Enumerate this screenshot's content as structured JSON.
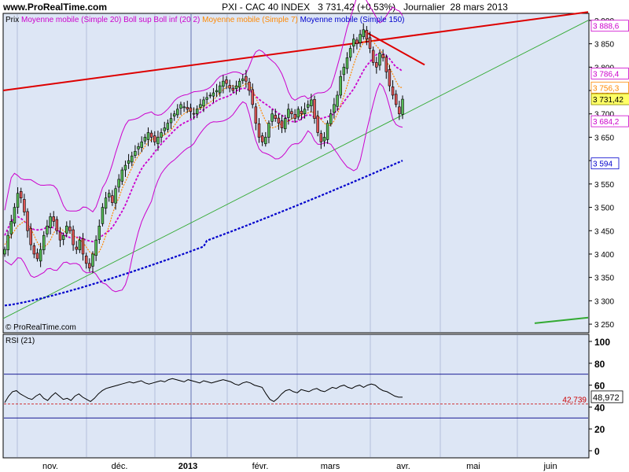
{
  "header": {
    "site": "www.ProRealTime.com",
    "title": "PXI - CAC 40 INDEX   3 731,42 (+0,53%)   Journalier  28 mars 2013"
  },
  "watermark": "© ProRealTime.com",
  "legend": [
    {
      "label": "Prix",
      "color": "#000000"
    },
    {
      "label": "Moyenne mobile (Simple 20)",
      "color": "#cc00cc"
    },
    {
      "label": "Boll sup Boll inf (20 2)",
      "color": "#cc00cc"
    },
    {
      "label": "Moyenne mobile (Simple 7)",
      "color": "#ff8800"
    },
    {
      "label": "Moyenne mobile (Simple 150)",
      "color": "#0000cc"
    }
  ],
  "rsi": {
    "label": "RSI (21)",
    "current": "48,972",
    "marker": "42,739",
    "ticks": [
      "100",
      "80",
      "60",
      "40",
      "20",
      "0"
    ]
  },
  "price_axis_ticks": [
    "3 900",
    "3 850",
    "3 800",
    "3 750",
    "3 700",
    "3 650",
    "3 600",
    "3 550",
    "3 500",
    "3 450",
    "3 400",
    "3 350",
    "3 300",
    "3 250"
  ],
  "value_tags": [
    {
      "text": "3 888,6",
      "color": "#cc00cc",
      "border": "#cc00cc",
      "bg": "#ffffff"
    },
    {
      "text": "3 786,4",
      "color": "#cc00cc",
      "border": "#cc00cc",
      "bg": "#ffffff"
    },
    {
      "text": "3 756,3",
      "color": "#ff8800",
      "border": "#ff8800",
      "bg": "#ffffff"
    },
    {
      "text": "3 731,42",
      "color": "#000000",
      "border": "#888800",
      "bg": "#ffff66"
    },
    {
      "text": "3 684,2",
      "color": "#cc00cc",
      "border": "#cc00cc",
      "bg": "#ffffff"
    },
    {
      "text": "3 594",
      "color": "#0000cc",
      "border": "#0000cc",
      "bg": "#ffffff"
    }
  ],
  "x_labels": [
    "nov.",
    "déc.",
    "2013",
    "févr.",
    "mars",
    "avr.",
    "mai",
    "juin"
  ],
  "colors": {
    "panel_bg": "#dde6f5",
    "up": "#55bb55",
    "down": "#dd5555",
    "grid": "#9aa6c8"
  },
  "chart_data": {
    "type": "candlestick",
    "title": "PXI - CAC 40 INDEX",
    "period": "Journalier",
    "last_close": 3731.42,
    "change_pct": 0.53,
    "date": "28 mars 2013",
    "ylim": [
      3240,
      3910
    ],
    "x_categories": [
      "nov.",
      "déc.",
      "2013",
      "févr.",
      "mars",
      "avr.",
      "mai",
      "juin"
    ],
    "close_series": [
      3410,
      3440,
      3470,
      3500,
      3530,
      3520,
      3490,
      3450,
      3420,
      3400,
      3390,
      3410,
      3440,
      3460,
      3480,
      3470,
      3450,
      3430,
      3440,
      3460,
      3450,
      3420,
      3410,
      3430,
      3400,
      3380,
      3370,
      3400,
      3430,
      3460,
      3500,
      3520,
      3530,
      3510,
      3540,
      3560,
      3580,
      3590,
      3600,
      3610,
      3620,
      3630,
      3640,
      3650,
      3660,
      3650,
      3640,
      3650,
      3660,
      3670,
      3680,
      3690,
      3700,
      3710,
      3720,
      3715,
      3710,
      3705,
      3700,
      3710,
      3720,
      3730,
      3735,
      3740,
      3745,
      3750,
      3760,
      3770,
      3765,
      3755,
      3750,
      3760,
      3770,
      3775,
      3770,
      3750,
      3720,
      3680,
      3650,
      3640,
      3650,
      3680,
      3700,
      3690,
      3680,
      3670,
      3690,
      3710,
      3700,
      3690,
      3710,
      3700,
      3710,
      3720,
      3730,
      3690,
      3660,
      3640,
      3650,
      3680,
      3700,
      3720,
      3740,
      3780,
      3800,
      3820,
      3840,
      3860,
      3850,
      3870,
      3880,
      3860,
      3840,
      3810,
      3800,
      3830,
      3820,
      3790,
      3760,
      3740,
      3720,
      3700,
      3731.42
    ],
    "sma7_series": [
      3420,
      3430,
      3440,
      3450,
      3460,
      3465,
      3470,
      3465,
      3455,
      3440,
      3425,
      3415,
      3415,
      3420,
      3430,
      3445,
      3455,
      3455,
      3450,
      3445,
      3445,
      3440,
      3435,
      3430,
      3425,
      3415,
      3405,
      3400,
      3400,
      3405,
      3420,
      3440,
      3460,
      3485,
      3505,
      3520,
      3540,
      3555,
      3570,
      3585,
      3600,
      3610,
      3620,
      3630,
      3640,
      3645,
      3648,
      3650,
      3652,
      3655,
      3660,
      3665,
      3675,
      3685,
      3695,
      3700,
      3705,
      3708,
      3710,
      3710,
      3712,
      3715,
      3720,
      3725,
      3730,
      3738,
      3745,
      3752,
      3757,
      3760,
      3760,
      3758,
      3758,
      3760,
      3765,
      3763,
      3752,
      3735,
      3718,
      3700,
      3685,
      3673,
      3670,
      3672,
      3675,
      3680,
      3682,
      3685,
      3690,
      3693,
      3695,
      3698,
      3700,
      3702,
      3705,
      3702,
      3695,
      3688,
      3680,
      3675,
      3676,
      3685,
      3700,
      3718,
      3738,
      3760,
      3782,
      3805,
      3825,
      3840,
      3852,
      3860,
      3860,
      3855,
      3845,
      3838,
      3828,
      3815,
      3800,
      3785,
      3770,
      3757,
      3756.3
    ],
    "sma20_last": 3786.4,
    "boll_upper_last": 3888.6,
    "boll_lower_last": 3684.2,
    "sma150_last": 3594,
    "trendlines": [
      {
        "from": [
          "start",
          3750
        ],
        "to": [
          "end",
          3918
        ],
        "color": "red"
      },
      {
        "from": [
          "mars",
          3878
        ],
        "to": [
          "mars-end",
          3805
        ],
        "color": "red"
      },
      {
        "from": [
          "start",
          3265
        ],
        "to": [
          "end",
          3900
        ],
        "color": "green"
      }
    ],
    "rsi_period": 21,
    "rsi_last": 48.972,
    "rsi_marker": 42.739,
    "rsi_levels": [
      70,
      30
    ],
    "rsi_series": [
      44,
      50,
      54,
      55,
      52,
      50,
      48,
      47,
      50,
      52,
      48,
      46,
      50,
      53,
      50,
      47,
      48,
      46,
      50,
      52,
      49,
      47,
      45,
      48,
      52,
      55,
      57,
      58,
      59,
      60,
      61,
      62,
      63,
      62,
      63,
      64,
      62,
      61,
      62,
      63,
      64,
      63,
      65,
      66,
      65,
      64,
      63,
      65,
      64,
      63,
      62,
      64,
      63,
      62,
      63,
      64,
      65,
      64,
      63,
      61,
      60,
      62,
      63,
      62,
      60,
      59,
      58,
      52,
      47,
      45,
      48,
      52,
      55,
      56,
      54,
      53,
      56,
      55,
      54,
      56,
      57,
      55,
      54,
      56,
      58,
      57,
      59,
      60,
      58,
      57,
      59,
      60,
      58,
      60,
      61,
      60,
      57,
      55,
      54,
      52,
      50,
      49,
      48.972
    ]
  }
}
